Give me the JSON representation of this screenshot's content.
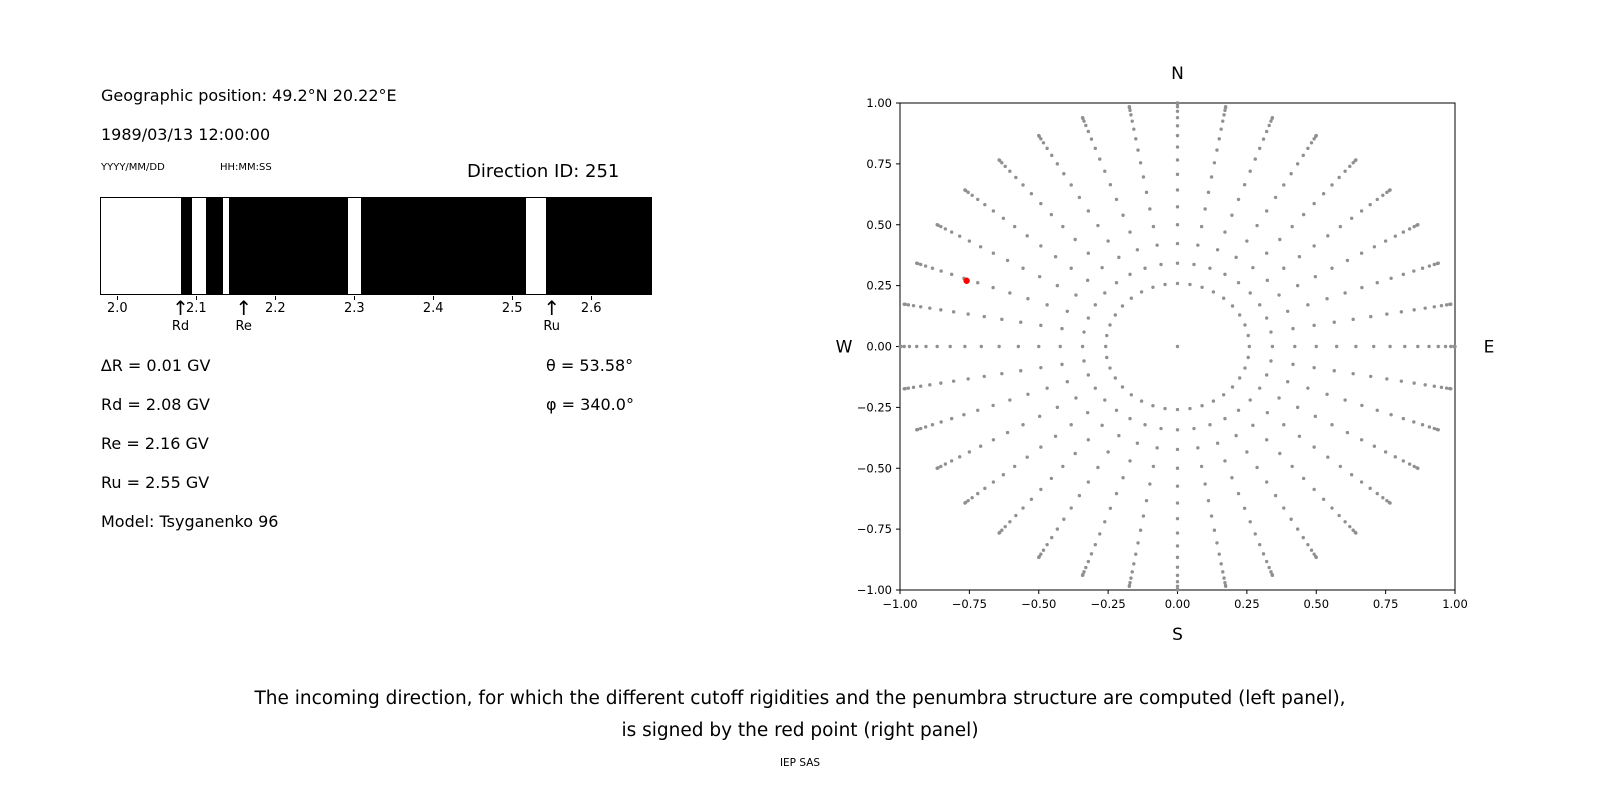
{
  "meta": {
    "background": "#ffffff",
    "footer": "IEP SAS"
  },
  "left_panel": {
    "geo_position": "Geographic position: 49.2°N 20.22°E",
    "datetime": "1989/03/13 12:00:00",
    "date_format": "YYYY/MM/DD",
    "time_format": "HH:MM:SS",
    "direction_id": "Direction ID: 251",
    "results": [
      "∆R = 0.01 GV",
      "Rd = 2.08 GV",
      "Re = 2.16 GV",
      "Ru = 2.55 GV",
      "Model: Tsyganenko 96"
    ],
    "angles": [
      "θ = 53.58°",
      "φ = 340.0°"
    ]
  },
  "chart_data": [
    {
      "type": "bar",
      "subtype": "penumbra-barcode",
      "x_unit": "GV",
      "x_range": [
        1.978,
        2.677
      ],
      "x_ticks": [
        2.0,
        2.1,
        2.2,
        2.3,
        2.4,
        2.5,
        2.6
      ],
      "x_tick_labels": [
        "2.0",
        "2.1",
        "2.2",
        "2.3",
        "2.4",
        "2.5",
        "2.6"
      ],
      "band_color": "#000000",
      "background": "#ffffff",
      "black_segments": [
        [
          2.08,
          2.094
        ],
        [
          2.111,
          2.133
        ],
        [
          2.141,
          2.292
        ],
        [
          2.308,
          2.518
        ],
        [
          2.543,
          2.677
        ]
      ],
      "markers": [
        {
          "label": "Rd",
          "value": 2.08
        },
        {
          "label": "Re",
          "value": 2.16
        },
        {
          "label": "Ru",
          "value": 2.55
        }
      ]
    },
    {
      "type": "scatter",
      "xlim": [
        -1,
        1
      ],
      "ylim": [
        -1,
        1
      ],
      "x_ticks": [
        -1,
        -0.75,
        -0.5,
        -0.25,
        0,
        0.25,
        0.5,
        0.75,
        1
      ],
      "tick_labels": [
        "−1.00",
        "−0.75",
        "−0.50",
        "−0.25",
        "0.00",
        "0.25",
        "0.50",
        "0.75",
        "1.00"
      ],
      "compass": {
        "top": "N",
        "bottom": "S",
        "left": "W",
        "right": "E"
      },
      "grid": false,
      "legend": false,
      "dot_color": "#909090",
      "spokes": {
        "azimuth_start_deg": 0,
        "azimuth_step_deg": 10,
        "spoke_count": 36,
        "zenith_deg": [
          15,
          20,
          25,
          30,
          35,
          40,
          45,
          50,
          55,
          60,
          65,
          70,
          75,
          80,
          85,
          90
        ],
        "radius_rule": "sin(zenith)"
      },
      "center_dot": {
        "x": 0,
        "y": 0
      },
      "red_point": {
        "x": -0.76,
        "y": 0.27,
        "color": "#ff0000"
      }
    }
  ],
  "caption": {
    "line1": "The incoming direction, for which the different cutoff rigidities and the penumbra structure are computed (left panel),",
    "line2": "is signed by the red point (right panel)"
  }
}
